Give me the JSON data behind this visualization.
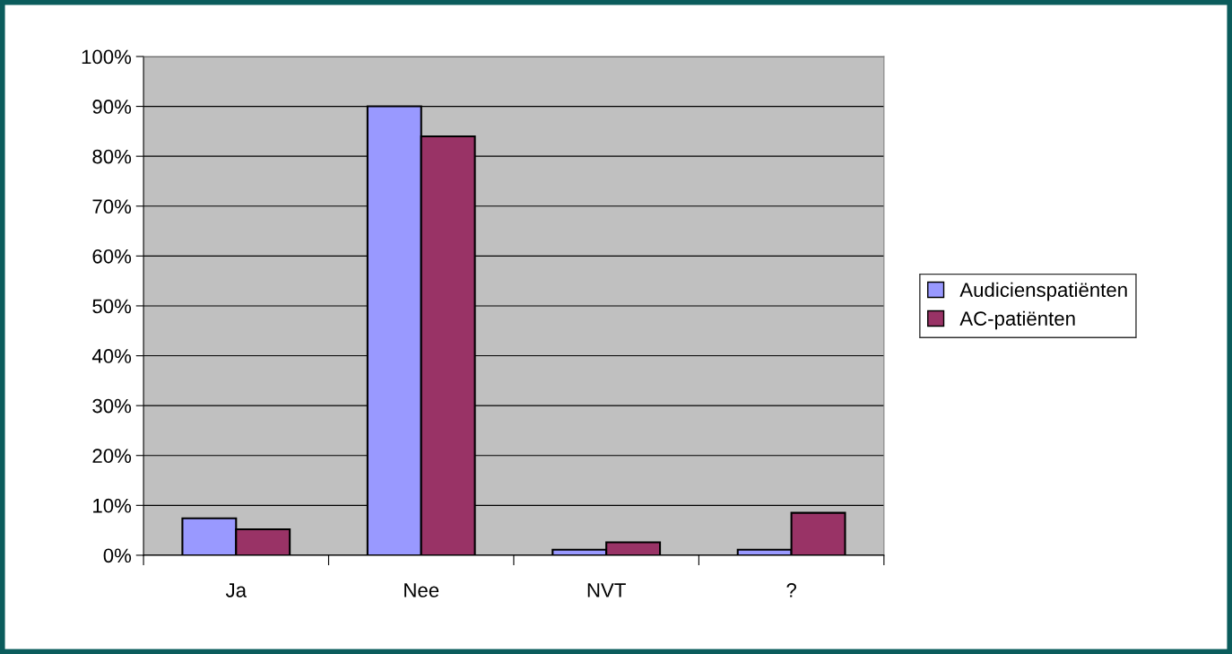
{
  "chart_data": {
    "type": "bar",
    "categories": [
      "Ja",
      "Nee",
      "NVT",
      "?"
    ],
    "series": [
      {
        "name": "Audicienspatiënten",
        "color": "#9999ff",
        "values": [
          7.4,
          90,
          1.1,
          1.1
        ]
      },
      {
        "name": "AC-patiënten",
        "color": "#993366",
        "values": [
          5.2,
          84,
          2.6,
          8.5
        ]
      }
    ],
    "ylim": [
      0,
      100
    ],
    "yticks": [
      {
        "value": 0,
        "label": "0%"
      },
      {
        "value": 10,
        "label": "10%"
      },
      {
        "value": 20,
        "label": "20%"
      },
      {
        "value": 30,
        "label": "30%"
      },
      {
        "value": 40,
        "label": "40%"
      },
      {
        "value": 50,
        "label": "50%"
      },
      {
        "value": 60,
        "label": "60%"
      },
      {
        "value": 70,
        "label": "70%"
      },
      {
        "value": 80,
        "label": "80%"
      },
      {
        "value": 90,
        "label": "90%"
      },
      {
        "value": 100,
        "label": "100%"
      }
    ],
    "grid": "y",
    "legend": "right"
  }
}
